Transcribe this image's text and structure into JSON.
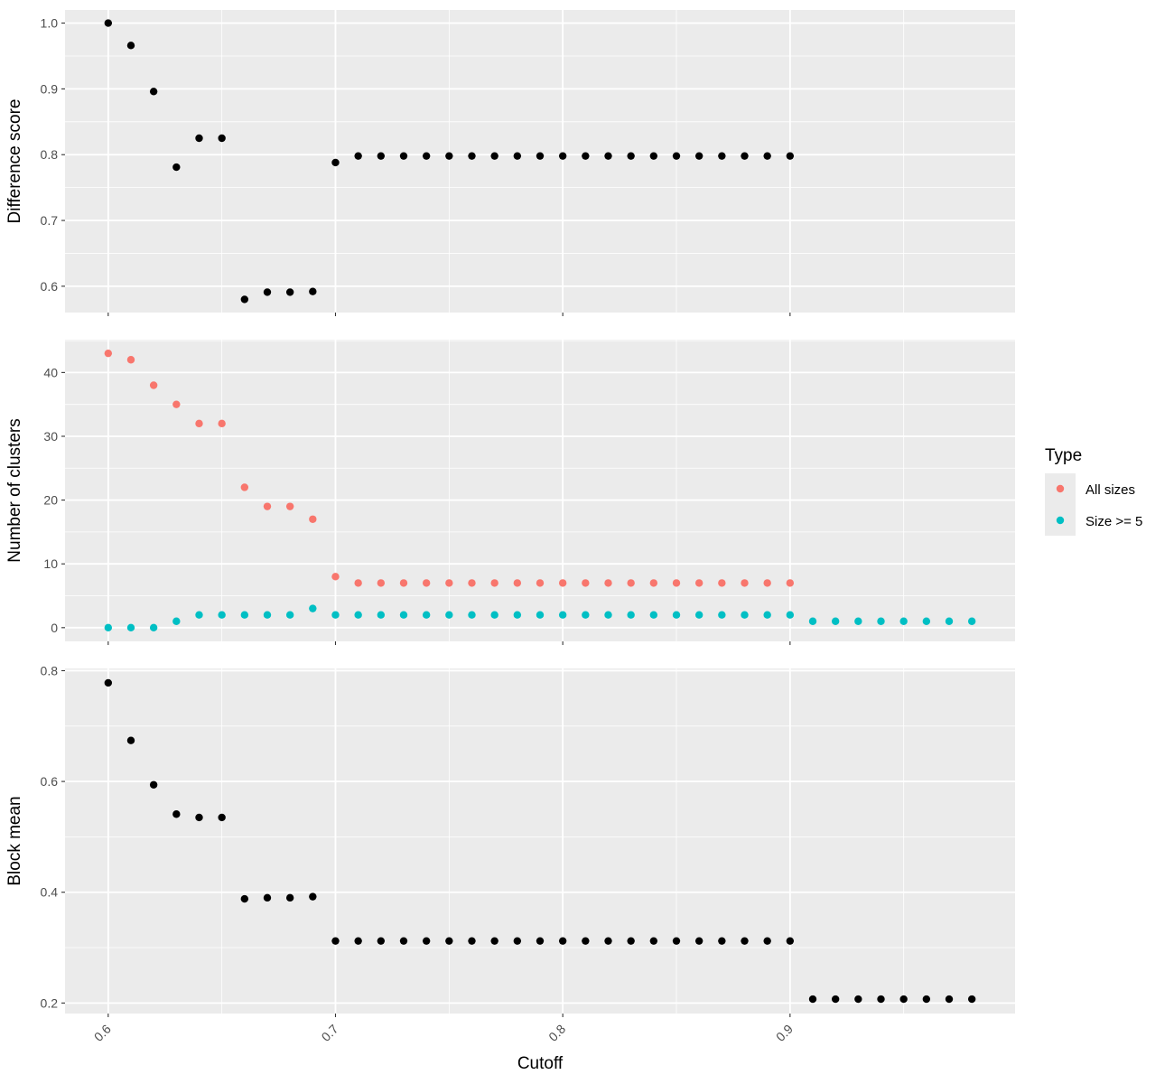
{
  "chart_data": {
    "type": "scatter",
    "xlabel": "Cutoff",
    "x_ticks": [
      "0.6",
      "0.7",
      "0.8",
      "0.9"
    ],
    "xlim": [
      0.581,
      0.999
    ],
    "legend": {
      "title": "Type",
      "placement": "right",
      "entries": [
        {
          "label": "All sizes",
          "color": "#F8766D"
        },
        {
          "label": "Size >= 5",
          "color": "#00BFC4"
        }
      ]
    },
    "panels": [
      {
        "ylabel": "Difference score",
        "ylim": [
          0.56,
          1.02
        ],
        "y_ticks": [
          "0.6",
          "0.7",
          "0.8",
          "0.9",
          "1.0"
        ],
        "series": [
          {
            "color": "#000000",
            "x": [
              0.6,
              0.61,
              0.62,
              0.63,
              0.64,
              0.65,
              0.66,
              0.67,
              0.68,
              0.69,
              0.7,
              0.71,
              0.72,
              0.73,
              0.74,
              0.75,
              0.76,
              0.77,
              0.78,
              0.79,
              0.8,
              0.81,
              0.82,
              0.83,
              0.84,
              0.85,
              0.86,
              0.87,
              0.88,
              0.89,
              0.9
            ],
            "y": [
              1.0,
              0.966,
              0.896,
              0.781,
              0.825,
              0.825,
              0.58,
              0.591,
              0.591,
              0.592,
              0.788,
              0.798,
              0.798,
              0.798,
              0.798,
              0.798,
              0.798,
              0.798,
              0.798,
              0.798,
              0.798,
              0.798,
              0.798,
              0.798,
              0.798,
              0.798,
              0.798,
              0.798,
              0.798,
              0.798,
              0.798
            ]
          }
        ]
      },
      {
        "ylabel": "Number of clusters",
        "ylim": [
          -2.15,
          45.15
        ],
        "y_ticks": [
          "0",
          "10",
          "20",
          "30",
          "40"
        ],
        "series": [
          {
            "name": "All sizes",
            "color": "#F8766D",
            "x": [
              0.6,
              0.61,
              0.62,
              0.63,
              0.64,
              0.65,
              0.66,
              0.67,
              0.68,
              0.69,
              0.7,
              0.71,
              0.72,
              0.73,
              0.74,
              0.75,
              0.76,
              0.77,
              0.78,
              0.79,
              0.8,
              0.81,
              0.82,
              0.83,
              0.84,
              0.85,
              0.86,
              0.87,
              0.88,
              0.89,
              0.9
            ],
            "y": [
              43,
              42,
              38,
              35,
              32,
              32,
              22,
              19,
              19,
              17,
              8,
              7,
              7,
              7,
              7,
              7,
              7,
              7,
              7,
              7,
              7,
              7,
              7,
              7,
              7,
              7,
              7,
              7,
              7,
              7,
              7
            ]
          },
          {
            "name": "Size >= 5",
            "color": "#00BFC4",
            "x": [
              0.6,
              0.61,
              0.62,
              0.63,
              0.64,
              0.65,
              0.66,
              0.67,
              0.68,
              0.69,
              0.7,
              0.71,
              0.72,
              0.73,
              0.74,
              0.75,
              0.76,
              0.77,
              0.78,
              0.79,
              0.8,
              0.81,
              0.82,
              0.83,
              0.84,
              0.85,
              0.86,
              0.87,
              0.88,
              0.89,
              0.9,
              0.91,
              0.92,
              0.93,
              0.94,
              0.95,
              0.96,
              0.97,
              0.98
            ],
            "y": [
              0,
              0,
              0,
              1,
              2,
              2,
              2,
              2,
              2,
              3,
              2,
              2,
              2,
              2,
              2,
              2,
              2,
              2,
              2,
              2,
              2,
              2,
              2,
              2,
              2,
              2,
              2,
              2,
              2,
              2,
              2,
              1,
              1,
              1,
              1,
              1,
              1,
              1,
              1
            ]
          }
        ]
      },
      {
        "ylabel": "Block mean",
        "ylim": [
          0.181,
          0.804
        ],
        "y_ticks": [
          "0.2",
          "0.4",
          "0.6",
          "0.8"
        ],
        "series": [
          {
            "color": "#000000",
            "x": [
              0.6,
              0.61,
              0.62,
              0.63,
              0.64,
              0.65,
              0.66,
              0.67,
              0.68,
              0.69,
              0.7,
              0.71,
              0.72,
              0.73,
              0.74,
              0.75,
              0.76,
              0.77,
              0.78,
              0.79,
              0.8,
              0.81,
              0.82,
              0.83,
              0.84,
              0.85,
              0.86,
              0.87,
              0.88,
              0.89,
              0.9,
              0.91,
              0.92,
              0.93,
              0.94,
              0.95,
              0.96,
              0.97,
              0.98
            ],
            "y": [
              0.778,
              0.674,
              0.594,
              0.541,
              0.535,
              0.535,
              0.388,
              0.39,
              0.39,
              0.392,
              0.312,
              0.312,
              0.312,
              0.312,
              0.312,
              0.312,
              0.312,
              0.312,
              0.312,
              0.312,
              0.312,
              0.312,
              0.312,
              0.312,
              0.312,
              0.312,
              0.312,
              0.312,
              0.312,
              0.312,
              0.312,
              0.207,
              0.207,
              0.207,
              0.207,
              0.207,
              0.207,
              0.207,
              0.207
            ]
          }
        ]
      }
    ]
  }
}
